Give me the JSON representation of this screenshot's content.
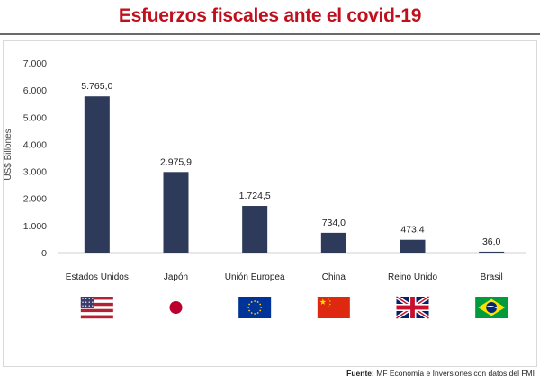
{
  "title": "Esfuerzos fiscales ante el covid-19",
  "source": {
    "label": "Fuente:",
    "text": "MF Economía e Inversiones con datos del FMI"
  },
  "chart_data": {
    "type": "bar",
    "title": "Esfuerzos fiscales ante el covid-19",
    "ylabel": "US$ Billones",
    "xlabel": "",
    "ylim": [
      0,
      7000
    ],
    "yticks": [
      0,
      1000,
      2000,
      3000,
      4000,
      5000,
      6000,
      7000
    ],
    "ytick_labels": [
      "0",
      "1.000",
      "2.000",
      "3.000",
      "4.000",
      "5.000",
      "6.000",
      "7.000"
    ],
    "categories": [
      "Estados Unidos",
      "Japón",
      "Unión Europea",
      "China",
      "Reino Unido",
      "Brasil"
    ],
    "values": [
      5765.0,
      2975.9,
      1724.5,
      734.0,
      473.4,
      36.0
    ],
    "value_labels": [
      "5.765,0",
      "2.975,9",
      "1.724,5",
      "734,0",
      "473,4",
      "36,0"
    ],
    "bar_color": "#2e3a59",
    "grid": false,
    "flags": [
      "us-flag",
      "japan-flag",
      "eu-flag",
      "china-flag",
      "uk-flag",
      "brazil-flag"
    ]
  }
}
